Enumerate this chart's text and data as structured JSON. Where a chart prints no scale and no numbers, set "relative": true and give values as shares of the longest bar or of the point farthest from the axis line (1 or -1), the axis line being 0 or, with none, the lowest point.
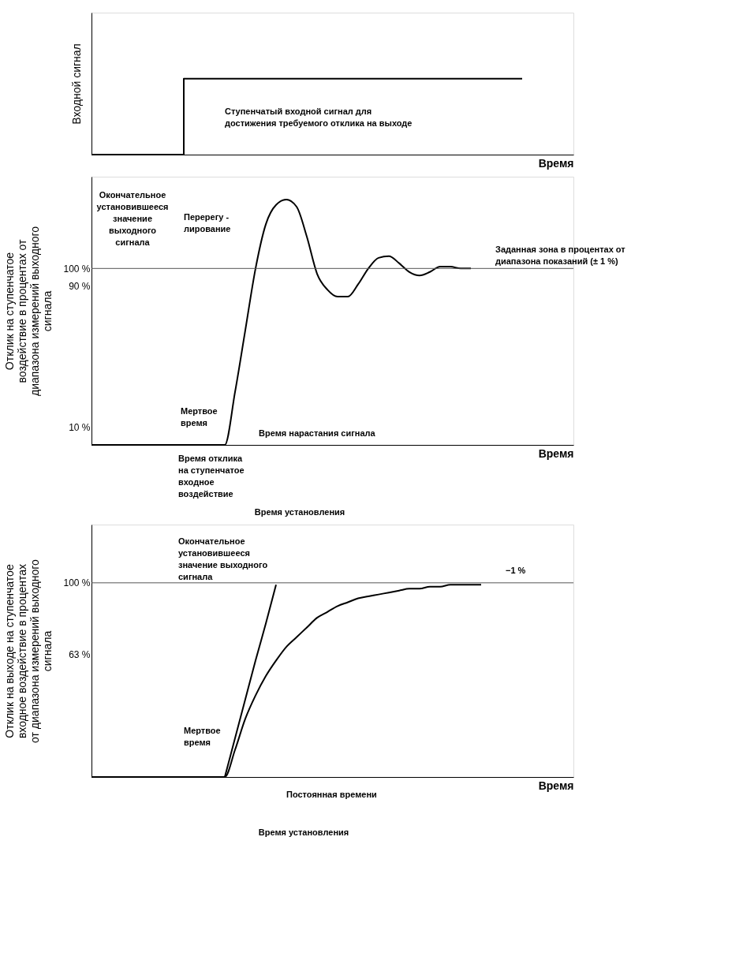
{
  "chart_data": [
    {
      "type": "step",
      "relative": true,
      "ylabel": "Входной сигнал",
      "xlabel": "Время",
      "categories": [
        null,
        null,
        null,
        null,
        null,
        null,
        null,
        null,
        null,
        null,
        null,
        null,
        null,
        null,
        null,
        null,
        null,
        null,
        null,
        null,
        null,
        null,
        null,
        null,
        null,
        null,
        null,
        null,
        null,
        null,
        null,
        null,
        null,
        null,
        null,
        null,
        null,
        null,
        null,
        null,
        null,
        null,
        null,
        null,
        null,
        null,
        null
      ],
      "series": [
        {
          "color": "#000000",
          "values": [
            0,
            0,
            0,
            0,
            0,
            0,
            0,
            0,
            0,
            1,
            1,
            1,
            1,
            1,
            1,
            1,
            1,
            1,
            1,
            1,
            1,
            1,
            1,
            1,
            1,
            1,
            1,
            1,
            1,
            1,
            1,
            1,
            1,
            1,
            1,
            1,
            1,
            1,
            1,
            1,
            1,
            1,
            1,
            null,
            null,
            null,
            null
          ]
        }
      ],
      "annotations": [
        "Ступенчатый входной сигнал для\nдостижения требуемого отклика на выходе"
      ]
    },
    {
      "type": "line",
      "ylabel": "Отклик на ступенчатое\nвоздействие в процентах от\nдиапазона измерений выходного\nсигнала",
      "xlabel": "Время",
      "categories": [
        null,
        null,
        null,
        null,
        null,
        null,
        null,
        null,
        null,
        null,
        null,
        null,
        null,
        null,
        null,
        null,
        null,
        null,
        null,
        null,
        null,
        null,
        null,
        null,
        null,
        null,
        null,
        null,
        null,
        null,
        null,
        null,
        null,
        null,
        null,
        null,
        null,
        null,
        null,
        null,
        null,
        null,
        null,
        null,
        null,
        null,
        null
      ],
      "ylim": [
        0,
        152
      ],
      "yticks": [
        {
          "value": 10,
          "label": "10 %"
        },
        {
          "value": 90,
          "label": "90 %"
        },
        {
          "value": 100,
          "label": "100 %"
        }
      ],
      "series": [
        {
          "color": "#000000",
          "values": [
            0,
            0,
            0,
            0,
            0,
            0,
            0,
            0,
            0,
            0,
            0,
            0,
            0,
            0,
            30,
            65,
            100,
            125,
            136,
            139,
            135,
            118,
            97,
            88,
            84,
            84,
            91,
            100,
            106,
            107,
            103,
            98,
            96,
            98,
            101,
            101,
            100,
            100,
            null,
            null,
            null,
            null,
            null,
            null,
            null,
            null,
            null
          ]
        }
      ],
      "ref_lines": [
        {
          "axis": "y",
          "value": 100,
          "color": "#555555"
        }
      ],
      "annotations": [
        "Окончательное\nустановившееся\nзначение\nвыходного\nсигнала",
        "Перерегу -\nлирование",
        "Заданная зона в процентах от\nдиапазона показаний (± 1 %)",
        "Мертвое\nвремя",
        "Время нарастания сигнала",
        "Время отклика\nна ступенчатое\nвходное\nвоздействие",
        "Время установления"
      ]
    },
    {
      "type": "line",
      "ylabel": "Отклик на выходе на ступенчатое\nвходное воздействие в процентах\nот диапазона измерений выходного\nсигнала",
      "xlabel": "Время",
      "categories": [
        null,
        null,
        null,
        null,
        null,
        null,
        null,
        null,
        null,
        null,
        null,
        null,
        null,
        null,
        null,
        null,
        null,
        null,
        null,
        null,
        null,
        null,
        null,
        null,
        null,
        null,
        null,
        null,
        null,
        null,
        null,
        null,
        null,
        null,
        null,
        null,
        null,
        null,
        null,
        null,
        null,
        null,
        null,
        null,
        null,
        null,
        null
      ],
      "ylim": [
        0,
        130
      ],
      "yticks": [
        {
          "value": 63,
          "label": "63 %"
        },
        {
          "value": 100,
          "label": "100 %"
        }
      ],
      "series": [
        {
          "color": "#000000",
          "values": [
            0,
            0,
            0,
            0,
            0,
            0,
            0,
            0,
            0,
            0,
            0,
            0,
            0,
            0,
            14,
            30,
            42,
            52,
            60,
            67,
            72,
            77,
            82,
            85,
            88,
            90,
            92,
            93,
            94,
            95,
            96,
            97,
            97,
            98,
            98,
            99,
            99,
            99,
            99,
            null,
            null,
            null,
            null,
            null,
            null,
            null,
            null
          ]
        },
        {
          "type": "line",
          "color": "#000000",
          "values": [
            null,
            null,
            null,
            null,
            null,
            null,
            null,
            null,
            null,
            null,
            null,
            null,
            null,
            0,
            20,
            40,
            60,
            79,
            99,
            null,
            null,
            null,
            null,
            null,
            null,
            null,
            null,
            null,
            null,
            null,
            null,
            null,
            null,
            null,
            null,
            null,
            null,
            null,
            null,
            null,
            null,
            null,
            null,
            null,
            null,
            null,
            null
          ]
        }
      ],
      "ref_lines": [
        {
          "axis": "y",
          "value": 100,
          "color": "#555555"
        }
      ],
      "annotations": [
        "Окончательное\nустановившееся\nзначение выходного\nсигнала",
        "−1 %",
        "Мертвое\nвремя",
        "Постоянная времени",
        "Время установления"
      ]
    }
  ]
}
